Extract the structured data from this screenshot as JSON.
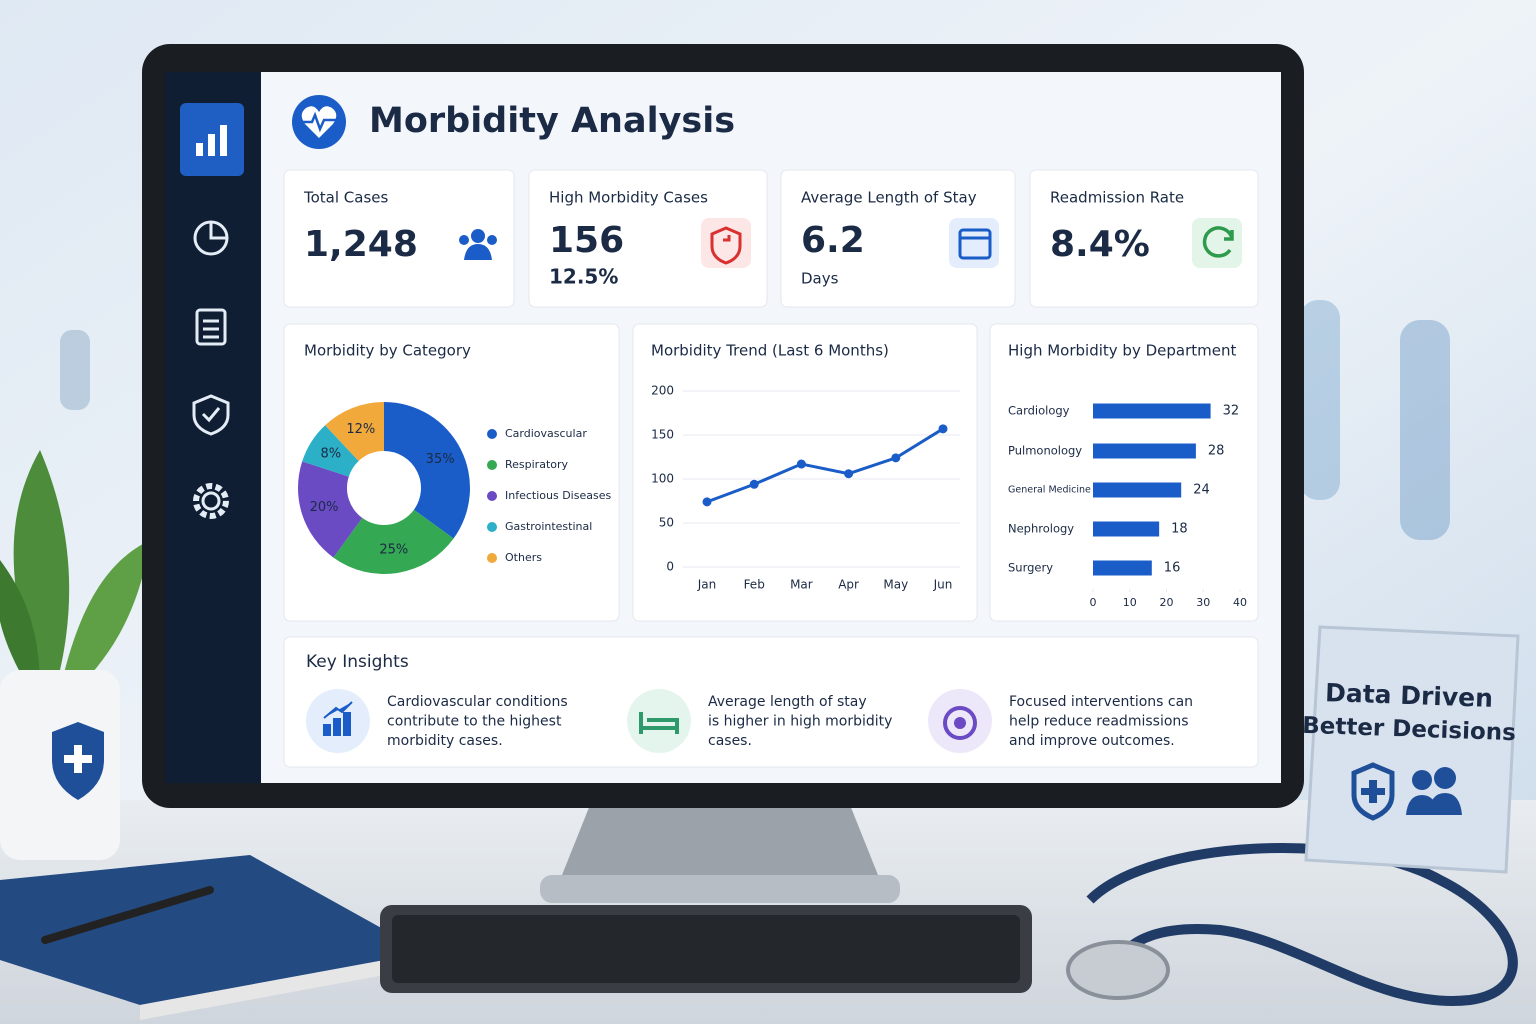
{
  "header": {
    "title": "Morbidity Analysis"
  },
  "kpis": [
    {
      "label": "Total Cases",
      "value": "1,248"
    },
    {
      "label": "High Morbidity Cases",
      "value": "156",
      "sub": "12.5%"
    },
    {
      "label": "Average Length of Stay",
      "value": "6.2",
      "sub": "Days"
    },
    {
      "label": "Readmission Rate",
      "value": "8.4%"
    }
  ],
  "chart_data": [
    {
      "type": "pie",
      "title": "Morbidity by Category",
      "categories": [
        "Cardiovascular",
        "Respiratory",
        "Infectious Diseases",
        "Gastrointestinal",
        "Others"
      ],
      "values": [
        35,
        25,
        20,
        8,
        12
      ],
      "value_labels": [
        "35%",
        "25%",
        "20%",
        "8%",
        "12%"
      ],
      "colors": [
        "#1a5dc8",
        "#34a853",
        "#6a4bc4",
        "#2bb0c7",
        "#f2a93b"
      ]
    },
    {
      "type": "line",
      "title": "Morbidity Trend (Last 6 Months)",
      "x": [
        "Jan",
        "Feb",
        "Mar",
        "Apr",
        "May",
        "Jun"
      ],
      "values": [
        74,
        94,
        117,
        106,
        124,
        157
      ],
      "color": "#1a5dc8",
      "ylim": [
        0,
        200
      ],
      "yticks": [
        0,
        50,
        100,
        150,
        200
      ],
      "grid": true
    },
    {
      "type": "barh",
      "title": "High Morbidity by Department",
      "categories": [
        "Cardiology",
        "Pulmonology",
        "General Medicine",
        "Nephrology",
        "Surgery"
      ],
      "values": [
        32,
        28,
        24,
        18,
        16
      ],
      "color": "#1a5dc8",
      "xlim": [
        0,
        40
      ],
      "xticks": [
        0,
        10,
        20,
        30,
        40
      ]
    }
  ],
  "insights": {
    "title": "Key Insights",
    "items": [
      {
        "lines": [
          "Cardiovascular conditions",
          "contribute to the highest",
          "morbidity cases."
        ]
      },
      {
        "lines": [
          "Average length of stay",
          "is higher in high morbidity",
          "cases."
        ]
      },
      {
        "lines": [
          "Focused interventions can",
          "help reduce readmissions",
          "and improve outcomes."
        ]
      }
    ]
  },
  "sign": {
    "lines": [
      "Data Driven",
      "Better Decisions"
    ]
  }
}
